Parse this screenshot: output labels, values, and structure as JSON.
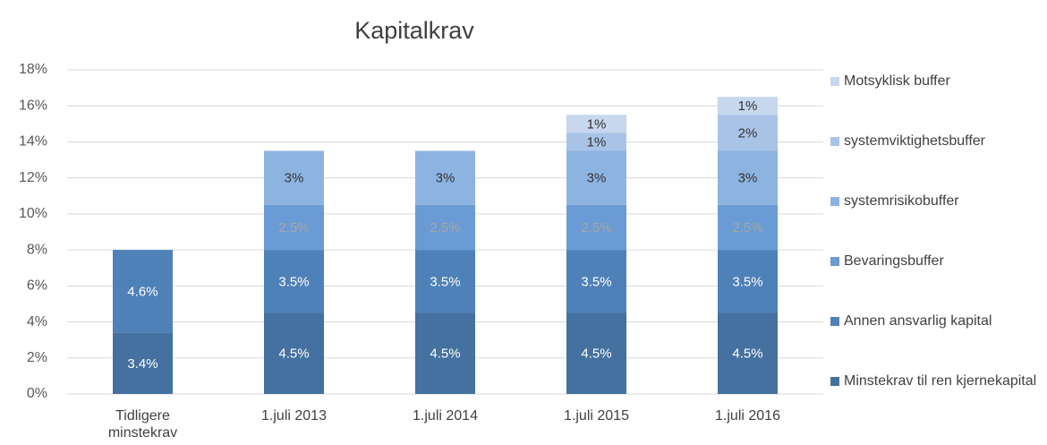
{
  "chart_data": {
    "type": "stacked_bar",
    "title": "Kapitalkrav",
    "categories": [
      "Tidligere minstekrav",
      "1.juli 2013",
      "1.juli 2014",
      "1.juli 2015",
      "1.juli 2016"
    ],
    "series": [
      {
        "name": "Minstekrav til ren kjernekapital",
        "color": "#44719f",
        "label_color": "#ffffff",
        "values": [
          3.4,
          4.5,
          4.5,
          4.5,
          4.5
        ],
        "value_labels": [
          "3.4%",
          "4.5%",
          "4.5%",
          "4.5%",
          "4.5%"
        ]
      },
      {
        "name": "Annen ansvarlig kapital",
        "color": "#4f81b9",
        "label_color": "#ffffff",
        "values": [
          4.6,
          3.5,
          3.5,
          3.5,
          3.5
        ],
        "value_labels": [
          "4.6%",
          "3.5%",
          "3.5%",
          "3.5%",
          "3.5%"
        ]
      },
      {
        "name": "Bevaringsbuffer",
        "color": "#6a9bd4",
        "label_color": "#a6a6a6",
        "values": [
          null,
          2.5,
          2.5,
          2.5,
          2.5
        ],
        "value_labels": [
          null,
          "2.5%",
          "2.5%",
          "2.5%",
          "2.5%"
        ]
      },
      {
        "name": "systemrisikobuffer",
        "color": "#8db3e0",
        "label_color": "#333333",
        "values": [
          null,
          3,
          3,
          3,
          3
        ],
        "value_labels": [
          null,
          "3%",
          "3%",
          "3%",
          "3%"
        ]
      },
      {
        "name": "systemviktighetsbuffer",
        "color": "#a8c3e6",
        "label_color": "#333333",
        "values": [
          null,
          null,
          null,
          1,
          2
        ],
        "value_labels": [
          null,
          null,
          null,
          "1%",
          "2%"
        ]
      },
      {
        "name": "Motsyklisk buffer",
        "color": "#c6d7ee",
        "label_color": "#333333",
        "values": [
          null,
          null,
          null,
          1,
          1
        ],
        "value_labels": [
          null,
          null,
          null,
          "1%",
          "1%"
        ]
      }
    ],
    "ylim": [
      0,
      18
    ],
    "yticks": [
      {
        "value": 0,
        "label": "0%"
      },
      {
        "value": 2,
        "label": "2%"
      },
      {
        "value": 4,
        "label": "4%"
      },
      {
        "value": 6,
        "label": "6%"
      },
      {
        "value": 8,
        "label": "8%"
      },
      {
        "value": 10,
        "label": "10%"
      },
      {
        "value": 12,
        "label": "12%"
      },
      {
        "value": 14,
        "label": "14%"
      },
      {
        "value": 16,
        "label": "16%"
      },
      {
        "value": 18,
        "label": "18%"
      }
    ],
    "grid": true,
    "legend": "right"
  }
}
